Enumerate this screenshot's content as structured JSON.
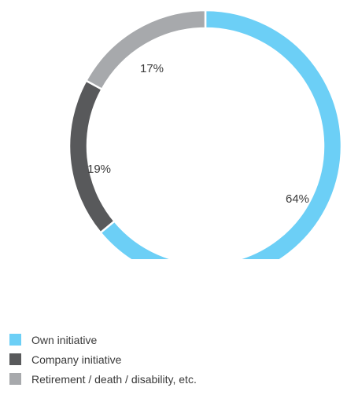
{
  "chart_data": {
    "type": "pie",
    "style": "donut",
    "categories": [
      "Own initiative",
      "Company initiative",
      "Retirement / death / disability, etc."
    ],
    "values": [
      64,
      19,
      17
    ],
    "value_labels": [
      "64%",
      "19%",
      "17%"
    ],
    "unit": "%",
    "colors": [
      "#6ccff6",
      "#58595b",
      "#a7a9ac"
    ],
    "start_angle": "12 o'clock",
    "direction": "clockwise",
    "legend_position": "bottom-left",
    "title": ""
  }
}
